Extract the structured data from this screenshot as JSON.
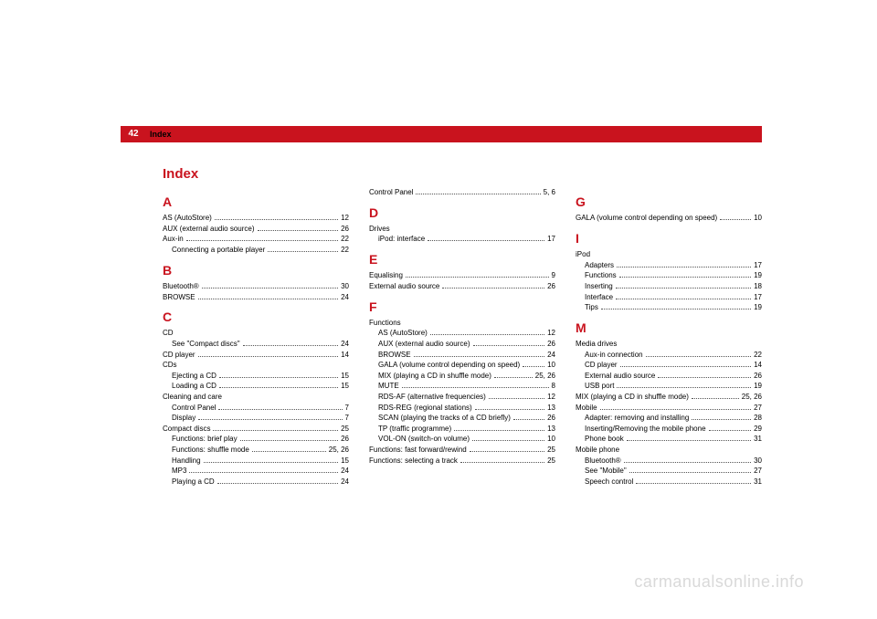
{
  "pageNumber": "42",
  "sectionTitle": "Index",
  "indexTitle": "Index",
  "watermark": "carmanualsonline.info",
  "colors": {
    "accent": "#c9131e",
    "text": "#000000",
    "background": "#ffffff",
    "watermark": "#d9d9d9",
    "dot": "#555555"
  },
  "columns": [
    [
      {
        "type": "letter",
        "label": "A"
      },
      {
        "type": "entry",
        "label": "AS (AutoStore)",
        "page": "12"
      },
      {
        "type": "entry",
        "label": "AUX (external audio source)",
        "page": "26"
      },
      {
        "type": "entry",
        "label": "Aux-in",
        "page": "22"
      },
      {
        "type": "sub",
        "label": "Connecting a portable player",
        "page": "22"
      },
      {
        "type": "letter",
        "label": "B"
      },
      {
        "type": "entry",
        "label": "Bluetooth®",
        "page": "30"
      },
      {
        "type": "entry",
        "label": "BROWSE",
        "page": "24"
      },
      {
        "type": "letter",
        "label": "C"
      },
      {
        "type": "entry",
        "label": "CD",
        "page": ""
      },
      {
        "type": "sub",
        "label": "See \"Compact discs\"",
        "page": "24"
      },
      {
        "type": "entry",
        "label": "CD player",
        "page": "14"
      },
      {
        "type": "entry",
        "label": "CDs",
        "page": ""
      },
      {
        "type": "sub",
        "label": "Ejecting a CD",
        "page": "15"
      },
      {
        "type": "sub",
        "label": "Loading a CD",
        "page": "15"
      },
      {
        "type": "entry",
        "label": "Cleaning and care",
        "page": ""
      },
      {
        "type": "sub",
        "label": "Control Panel",
        "page": "7"
      },
      {
        "type": "sub",
        "label": "Display",
        "page": "7"
      },
      {
        "type": "entry",
        "label": "Compact discs",
        "page": "25"
      },
      {
        "type": "sub",
        "label": "Functions: brief play",
        "page": "26"
      },
      {
        "type": "sub",
        "label": "Functions: shuffle mode",
        "page": "25, 26"
      },
      {
        "type": "sub",
        "label": "Handling",
        "page": "15"
      },
      {
        "type": "sub",
        "label": "MP3",
        "page": "24"
      },
      {
        "type": "sub",
        "label": "Playing a CD",
        "page": "24"
      }
    ],
    [
      {
        "type": "entry",
        "label": "Control Panel",
        "page": "5, 6"
      },
      {
        "type": "letter",
        "label": "D"
      },
      {
        "type": "entry",
        "label": "Drives",
        "page": ""
      },
      {
        "type": "sub",
        "label": "iPod: interface",
        "page": "17"
      },
      {
        "type": "letter",
        "label": "E"
      },
      {
        "type": "entry",
        "label": "Equalising",
        "page": "9"
      },
      {
        "type": "entry",
        "label": "External audio source",
        "page": "26"
      },
      {
        "type": "letter",
        "label": "F"
      },
      {
        "type": "entry",
        "label": "Functions",
        "page": ""
      },
      {
        "type": "sub",
        "label": "AS (AutoStore)",
        "page": "12"
      },
      {
        "type": "sub",
        "label": "AUX (external audio source)",
        "page": "26"
      },
      {
        "type": "sub",
        "label": "BROWSE",
        "page": "24"
      },
      {
        "type": "sub",
        "label": "GALA (volume control depending on speed)",
        "page": "10"
      },
      {
        "type": "sub",
        "label": "MIX (playing a CD in shuffle mode)",
        "page": "25, 26"
      },
      {
        "type": "sub",
        "label": "MUTE",
        "page": "8"
      },
      {
        "type": "sub",
        "label": "RDS-AF (alternative frequencies)",
        "page": "12"
      },
      {
        "type": "sub",
        "label": "RDS-REG (regional stations)",
        "page": "13"
      },
      {
        "type": "sub",
        "label": "SCAN (playing the tracks of a CD briefly)",
        "page": "26"
      },
      {
        "type": "sub",
        "label": "TP (traffic programme)",
        "page": "13"
      },
      {
        "type": "sub",
        "label": "VOL-ON (switch-on volume)",
        "page": "10"
      },
      {
        "type": "entry",
        "label": "Functions: fast forward/rewind",
        "page": "25"
      },
      {
        "type": "entry",
        "label": "Functions: selecting a track",
        "page": "25"
      }
    ],
    [
      {
        "type": "letter",
        "label": "G"
      },
      {
        "type": "entry",
        "label": "GALA (volume control depending on speed)",
        "page": "10"
      },
      {
        "type": "letter",
        "label": "I"
      },
      {
        "type": "entry",
        "label": "iPod",
        "page": ""
      },
      {
        "type": "sub",
        "label": "Adapters",
        "page": "17"
      },
      {
        "type": "sub",
        "label": "Functions",
        "page": "19"
      },
      {
        "type": "sub",
        "label": "Inserting",
        "page": "18"
      },
      {
        "type": "sub",
        "label": "Interface",
        "page": "17"
      },
      {
        "type": "sub",
        "label": "Tips",
        "page": "19"
      },
      {
        "type": "letter",
        "label": "M"
      },
      {
        "type": "entry",
        "label": "Media drives",
        "page": ""
      },
      {
        "type": "sub",
        "label": "Aux-in connection",
        "page": "22"
      },
      {
        "type": "sub",
        "label": "CD player",
        "page": "14"
      },
      {
        "type": "sub",
        "label": "External audio source",
        "page": "26"
      },
      {
        "type": "sub",
        "label": "USB port",
        "page": "19"
      },
      {
        "type": "entry",
        "label": "MIX (playing a CD in shuffle mode)",
        "page": "25, 26"
      },
      {
        "type": "entry",
        "label": "Mobile",
        "page": "27"
      },
      {
        "type": "sub",
        "label": "Adapter: removing and installing",
        "page": "28"
      },
      {
        "type": "sub",
        "label": "Inserting/Removing the mobile phone",
        "page": "29"
      },
      {
        "type": "sub",
        "label": "Phone book",
        "page": "31"
      },
      {
        "type": "entry",
        "label": "Mobile phone",
        "page": ""
      },
      {
        "type": "sub",
        "label": "Bluetooth®",
        "page": "30"
      },
      {
        "type": "sub",
        "label": "See \"Mobile\"",
        "page": "27"
      },
      {
        "type": "sub",
        "label": "Speech control",
        "page": "31"
      }
    ]
  ]
}
